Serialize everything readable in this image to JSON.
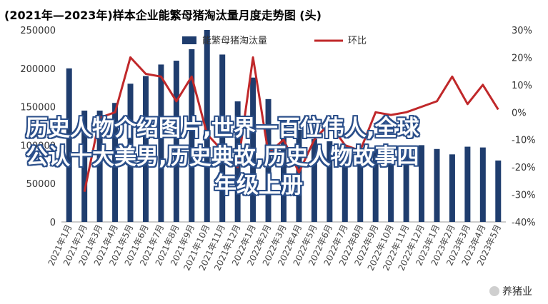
{
  "title": "(2021年—2023年)样本企业能繁母猪淘汰量月度走势图 (头)",
  "overlay": {
    "line1": "历史人物介绍图片,世界一百位伟人,全球",
    "line2": "公认十大美男,历史典故,历史人物故事四",
    "line3": "年级上册"
  },
  "brand": {
    "name": "养猪业",
    "icon": "wechat-icon"
  },
  "chart_data": {
    "type": "bar",
    "title": "(2021年—2023年)样本企业能繁母猪淘汰量月度走势图 (头)",
    "categories": [
      "2021年1月",
      "2021年2月",
      "2021年3月",
      "2021年4月",
      "2021年5月",
      "2021年6月",
      "2021年7月",
      "2021年8月",
      "2021年9月",
      "2021年10月",
      "2021年11月",
      "2021年12月",
      "2022年1月",
      "2022年2月",
      "2022年3月",
      "2022年4月",
      "2022年5月",
      "2022年6月",
      "2022年7月",
      "2022年8月",
      "2022年9月",
      "2022年10月",
      "2022年11月",
      "2022年12月",
      "2023年1月",
      "2023年2月",
      "2023年3月",
      "2023年4月",
      "2023年5月"
    ],
    "series": [
      {
        "name": "能繁母猪淘汰量",
        "type": "bar",
        "axis": "left",
        "color": "#1f3d6e",
        "values": [
          200000,
          145000,
          145000,
          155000,
          180000,
          190000,
          205000,
          210000,
          225000,
          250000,
          218000,
          157000,
          188000,
          160000,
          135000,
          120000,
          108000,
          105000,
          98000,
          96000,
          97000,
          96000,
          92000,
          100000,
          95000,
          88000,
          98000,
          97000,
          80000
        ]
      },
      {
        "name": "环比",
        "type": "line",
        "axis": "right",
        "color": "#c0282a",
        "values": [
          null,
          -29,
          -2,
          0,
          20,
          14,
          13,
          4,
          13,
          -8,
          -14,
          -20,
          20,
          -15,
          -10,
          -22,
          -10,
          -4,
          -12,
          -14,
          0,
          -1,
          0,
          2,
          4,
          13,
          3,
          10,
          1
        ]
      }
    ],
    "y_left": {
      "min": 0,
      "max": 250000,
      "ticks": [
        "0",
        "50000",
        "100000",
        "150000",
        "200000",
        "250000"
      ]
    },
    "y_right": {
      "min": -40,
      "max": 30,
      "ticks": [
        "-40%",
        "-30%",
        "-20%",
        "-10%",
        "0%",
        "10%",
        "20%",
        "30%"
      ]
    },
    "legend_position": "top-center",
    "grid": false
  }
}
